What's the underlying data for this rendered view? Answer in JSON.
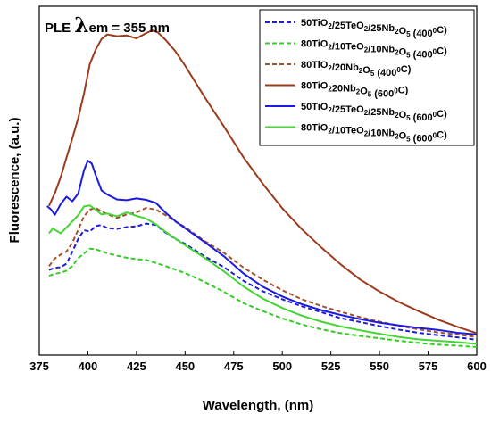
{
  "chart_data": {
    "type": "line",
    "annotation": {
      "prefix": "PLE ",
      "symbol": "λ",
      "rest": "em = 355 nm"
    },
    "xlabel": "Wavelength, (nm)",
    "ylabel": "Fluorescence, (a.u.)",
    "xlim": [
      375,
      600
    ],
    "ylim": [
      0,
      1.0
    ],
    "x_ticks": [
      375,
      400,
      425,
      450,
      475,
      500,
      525,
      550,
      575,
      600
    ],
    "y_tick_labels_shown": false,
    "grid": false,
    "legend_position": "top-right",
    "series": [
      {
        "name": "50TiO2/25TeO2/25Nb2O5 (400°C)",
        "legend_parts": [
          [
            "50TiO",
            ""
          ],
          [
            "2",
            "sub"
          ],
          [
            "/25TeO",
            ""
          ],
          [
            "2",
            "sub"
          ],
          [
            "/25Nb",
            ""
          ],
          [
            "2",
            "sub"
          ],
          [
            "O",
            ""
          ],
          [
            "5",
            "sub"
          ],
          [
            " (400",
            ""
          ],
          [
            "0",
            "sup"
          ],
          [
            "C)",
            ""
          ]
        ],
        "color": "#1f1fd0",
        "dash": "dash",
        "x": [
          380,
          383,
          386,
          389,
          392,
          395,
          398,
          401,
          404,
          407,
          410,
          415,
          420,
          425,
          430,
          435,
          440,
          445,
          450,
          460,
          470,
          480,
          490,
          500,
          510,
          520,
          530,
          540,
          550,
          560,
          570,
          580,
          590,
          600
        ],
        "y": [
          0.244,
          0.25,
          0.252,
          0.262,
          0.296,
          0.333,
          0.358,
          0.354,
          0.37,
          0.373,
          0.364,
          0.362,
          0.367,
          0.369,
          0.377,
          0.373,
          0.351,
          0.333,
          0.319,
          0.283,
          0.252,
          0.213,
          0.183,
          0.16,
          0.14,
          0.123,
          0.106,
          0.095,
          0.083,
          0.073,
          0.064,
          0.057,
          0.051,
          0.044
        ]
      },
      {
        "name": "80TiO2/10TeO2/10Nb2O5 (400°C)",
        "legend_parts": [
          [
            "80TiO",
            ""
          ],
          [
            "2",
            "sub"
          ],
          [
            "/10TeO",
            ""
          ],
          [
            "2",
            "sub"
          ],
          [
            "/10Nb",
            ""
          ],
          [
            "2",
            "sub"
          ],
          [
            "O",
            ""
          ],
          [
            "5",
            "sub"
          ],
          [
            " (400",
            ""
          ],
          [
            "0",
            "sup"
          ],
          [
            "C)",
            ""
          ]
        ],
        "color": "#33cc22",
        "dash": "dash",
        "x": [
          380,
          383,
          386,
          389,
          392,
          395,
          398,
          401,
          404,
          407,
          410,
          415,
          420,
          425,
          430,
          440,
          450,
          460,
          470,
          480,
          490,
          500,
          510,
          520,
          530,
          540,
          550,
          560,
          570,
          580,
          590,
          600
        ],
        "y": [
          0.227,
          0.233,
          0.236,
          0.242,
          0.255,
          0.278,
          0.291,
          0.305,
          0.303,
          0.298,
          0.292,
          0.285,
          0.279,
          0.275,
          0.273,
          0.255,
          0.235,
          0.21,
          0.181,
          0.149,
          0.126,
          0.105,
          0.088,
          0.074,
          0.063,
          0.055,
          0.048,
          0.041,
          0.035,
          0.03,
          0.027,
          0.023
        ]
      },
      {
        "name": "80TiO2/20Nb2O5 (400°C)",
        "legend_parts": [
          [
            "80TiO",
            ""
          ],
          [
            "2",
            "sub"
          ],
          [
            "/20Nb",
            ""
          ],
          [
            "2",
            "sub"
          ],
          [
            "O",
            ""
          ],
          [
            "5",
            "sub"
          ],
          [
            " (400",
            ""
          ],
          [
            "0",
            "sup"
          ],
          [
            "C)",
            ""
          ]
        ],
        "color": "#a0522d",
        "dash": "dash",
        "x": [
          380,
          383,
          386,
          389,
          392,
          395,
          398,
          401,
          404,
          407,
          410,
          415,
          420,
          425,
          430,
          435,
          440,
          445,
          450,
          460,
          470,
          480,
          490,
          500,
          510,
          520,
          530,
          540,
          550,
          560,
          570,
          580,
          590,
          600
        ],
        "y": [
          0.255,
          0.277,
          0.288,
          0.297,
          0.322,
          0.359,
          0.398,
          0.417,
          0.422,
          0.412,
          0.404,
          0.393,
          0.403,
          0.409,
          0.422,
          0.417,
          0.401,
          0.383,
          0.367,
          0.327,
          0.293,
          0.251,
          0.216,
          0.186,
          0.16,
          0.141,
          0.124,
          0.109,
          0.096,
          0.084,
          0.074,
          0.065,
          0.059,
          0.052
        ]
      },
      {
        "name": "80TiO2/20Nb2O5 (600°C)",
        "legend_parts": [
          [
            "80TiO",
            ""
          ],
          [
            "2",
            "sub"
          ],
          [
            "20Nb",
            ""
          ],
          [
            "2",
            "sub"
          ],
          [
            "O",
            ""
          ],
          [
            "5",
            "sub"
          ],
          [
            " (600",
            ""
          ],
          [
            "0",
            "sup"
          ],
          [
            "C)",
            ""
          ]
        ],
        "color": "#9b3a1c",
        "dash": "solid",
        "x": [
          380,
          383,
          386,
          389,
          392,
          395,
          398,
          401,
          404,
          407,
          410,
          415,
          420,
          425,
          430,
          433,
          436,
          440,
          445,
          450,
          455,
          460,
          470,
          480,
          490,
          500,
          510,
          520,
          530,
          540,
          550,
          560,
          570,
          580,
          590,
          600
        ],
        "y": [
          0.428,
          0.464,
          0.51,
          0.566,
          0.621,
          0.679,
          0.75,
          0.834,
          0.876,
          0.906,
          0.919,
          0.914,
          0.916,
          0.908,
          0.923,
          0.931,
          0.925,
          0.903,
          0.871,
          0.83,
          0.785,
          0.74,
          0.655,
          0.567,
          0.491,
          0.421,
          0.361,
          0.309,
          0.26,
          0.217,
          0.182,
          0.152,
          0.126,
          0.102,
          0.081,
          0.063
        ]
      },
      {
        "name": "50TiO2/25TeO2/25Nb2O5 (600°C)",
        "legend_parts": [
          [
            "50TiO",
            ""
          ],
          [
            "2",
            "sub"
          ],
          [
            "/25TeO",
            ""
          ],
          [
            "2",
            "sub"
          ],
          [
            "/25Nb",
            ""
          ],
          [
            "2",
            "sub"
          ],
          [
            "O",
            ""
          ],
          [
            "5",
            "sub"
          ],
          [
            " (600",
            ""
          ],
          [
            "0",
            "sup"
          ],
          [
            "C)",
            ""
          ]
        ],
        "color": "#1a1ae0",
        "dash": "solid",
        "x": [
          379,
          381,
          383,
          386,
          389,
          392,
          395,
          398,
          400,
          402,
          404,
          407,
          410,
          415,
          420,
          425,
          430,
          435,
          440,
          445,
          450,
          460,
          470,
          480,
          490,
          500,
          510,
          520,
          530,
          540,
          550,
          560,
          570,
          580,
          590,
          600
        ],
        "y": [
          0.427,
          0.418,
          0.402,
          0.433,
          0.454,
          0.441,
          0.463,
          0.53,
          0.557,
          0.549,
          0.516,
          0.472,
          0.46,
          0.446,
          0.444,
          0.449,
          0.445,
          0.436,
          0.408,
          0.384,
          0.364,
          0.324,
          0.283,
          0.234,
          0.196,
          0.168,
          0.146,
          0.129,
          0.115,
          0.103,
          0.093,
          0.085,
          0.078,
          0.072,
          0.064,
          0.059
        ]
      },
      {
        "name": "80TiO2/10TeO2/10Nb2O5 (600°C)",
        "legend_parts": [
          [
            "80TiO",
            ""
          ],
          [
            "2",
            "sub"
          ],
          [
            "/10TeO",
            ""
          ],
          [
            "2",
            "sub"
          ],
          [
            "/10Nb",
            ""
          ],
          [
            "2",
            "sub"
          ],
          [
            "O",
            ""
          ],
          [
            "5",
            "sub"
          ],
          [
            " (600",
            ""
          ],
          [
            "0",
            "sup"
          ],
          [
            "C)",
            ""
          ]
        ],
        "color": "#44d433",
        "dash": "solid",
        "x": [
          380,
          382,
          384,
          386,
          389,
          392,
          395,
          398,
          401,
          404,
          407,
          410,
          415,
          420,
          425,
          430,
          435,
          440,
          450,
          460,
          470,
          480,
          490,
          500,
          510,
          520,
          530,
          540,
          550,
          560,
          570,
          580,
          590,
          600
        ],
        "y": [
          0.349,
          0.363,
          0.356,
          0.349,
          0.366,
          0.383,
          0.401,
          0.426,
          0.429,
          0.417,
          0.403,
          0.406,
          0.398,
          0.409,
          0.399,
          0.391,
          0.375,
          0.353,
          0.315,
          0.279,
          0.24,
          0.197,
          0.162,
          0.135,
          0.113,
          0.096,
          0.082,
          0.071,
          0.061,
          0.052,
          0.045,
          0.041,
          0.037,
          0.032
        ]
      }
    ]
  }
}
